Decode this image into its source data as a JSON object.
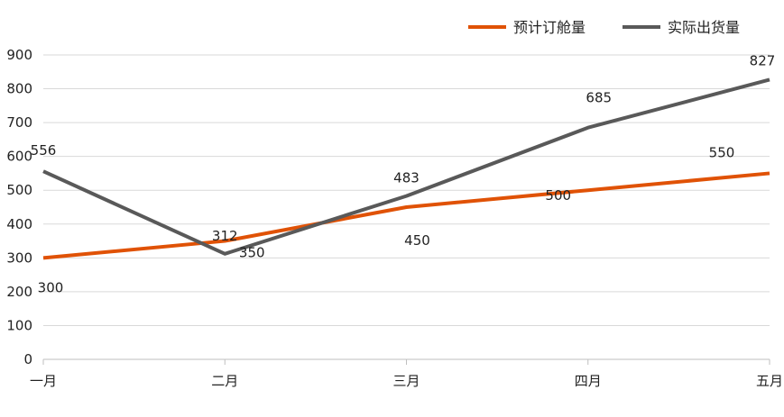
{
  "chart_data": {
    "type": "line",
    "title": "",
    "xlabel": "",
    "ylabel": "",
    "categories": [
      "一月",
      "二月",
      "三月",
      "四月",
      "五月"
    ],
    "ylim": [
      0,
      900
    ],
    "yticks": [
      0,
      100,
      200,
      300,
      400,
      500,
      600,
      700,
      800,
      900
    ],
    "grid": true,
    "legend_position": "top-right",
    "series": [
      {
        "name": "预计订舱量",
        "color": "#e05206",
        "values": [
          300,
          350,
          450,
          500,
          550
        ]
      },
      {
        "name": "实际出货量",
        "color": "#595959",
        "values": [
          556,
          312,
          483,
          685,
          827
        ]
      }
    ]
  }
}
